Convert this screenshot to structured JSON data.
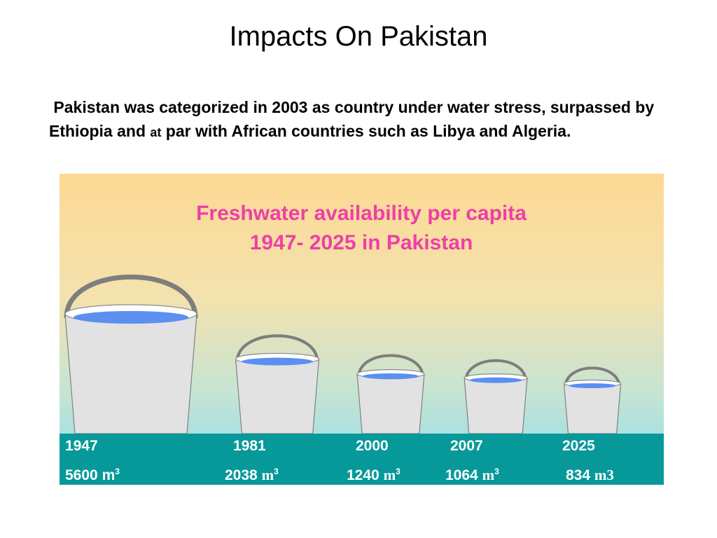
{
  "slide": {
    "title": "Impacts On Pakistan",
    "body_part1": "Pakistan was categorized in 2003 as country under water stress, surpassed  by Ethiopia and ",
    "body_small": "at",
    "body_part2": " par with African countries such as Libya and Algeria."
  },
  "infographic": {
    "title_line1": "Freshwater availability per capita",
    "title_line2": "1947- 2025 in Pakistan",
    "title_color": "#ee3fa7",
    "band_color": "#07999a",
    "water_color": "#5b8ff0"
  },
  "chart_data": {
    "type": "bar",
    "title": "Freshwater availability per capita 1947- 2025 in Pakistan",
    "categories": [
      "1947",
      "1981",
      "2000",
      "2007",
      "2025"
    ],
    "values": [
      5600,
      2038,
      1240,
      1064,
      834
    ],
    "value_labels": [
      {
        "num": "5600",
        "unit": "m",
        "sup": "3"
      },
      {
        "num": "2038",
        "unit": "m",
        "sup": "3"
      },
      {
        "num": "1240",
        "unit": "m",
        "sup": "3"
      },
      {
        "num": "1064",
        "unit": "m",
        "sup": "3"
      },
      {
        "num": "834",
        "unit": "m3",
        "sup": ""
      }
    ],
    "unit": "m3"
  }
}
